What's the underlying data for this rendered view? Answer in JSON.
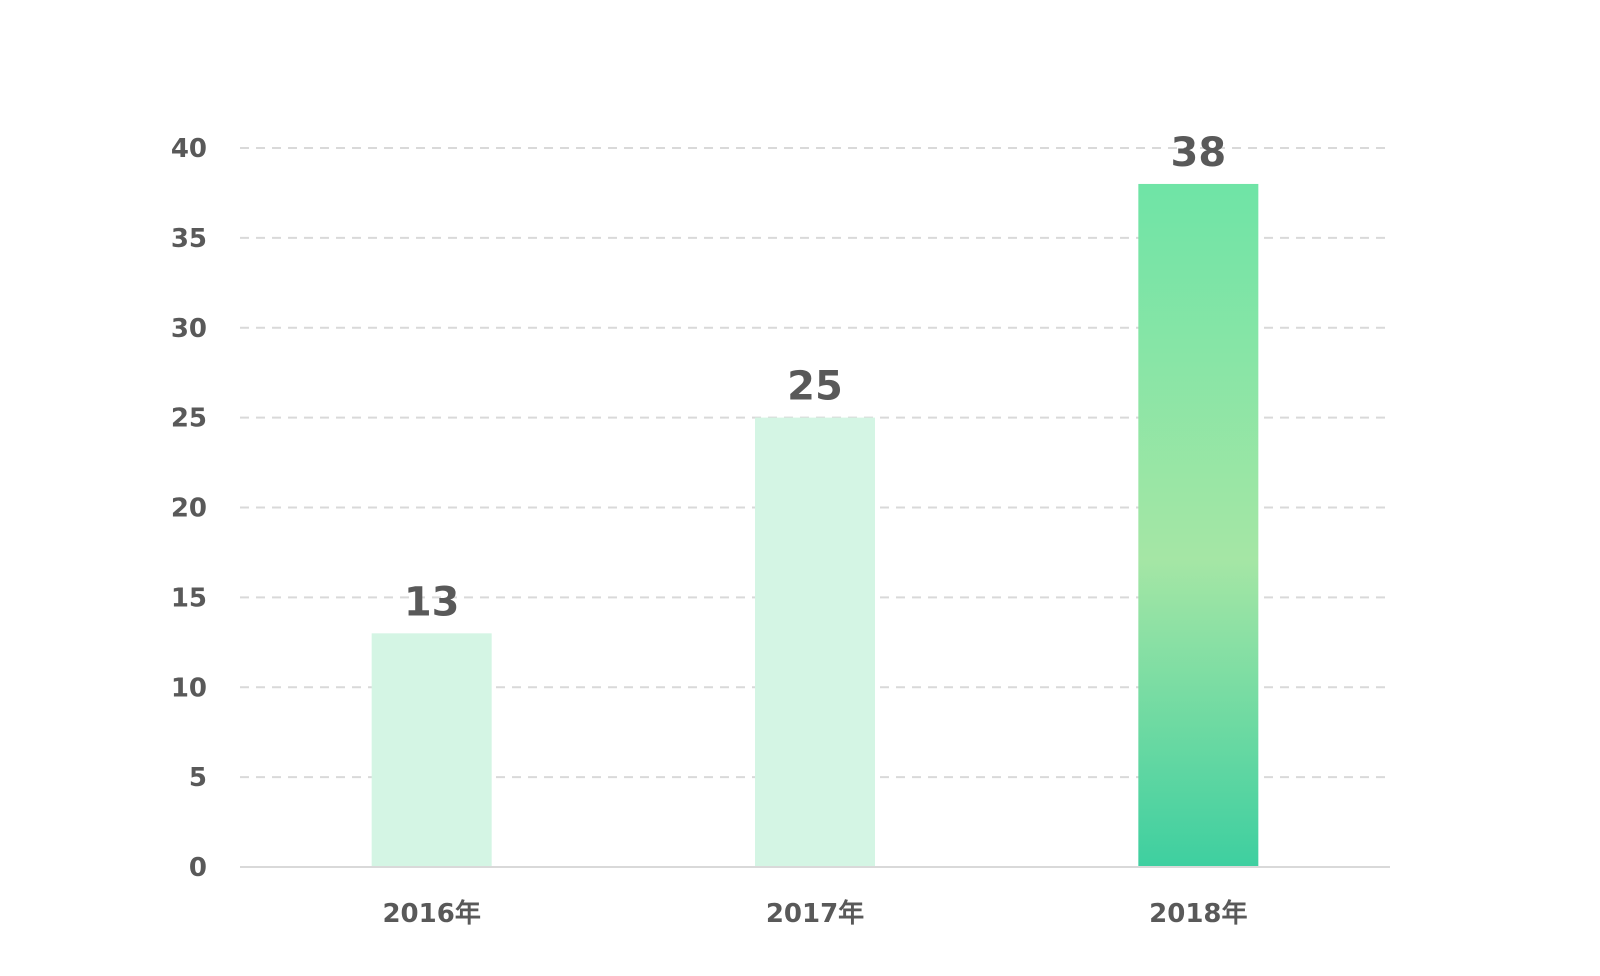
{
  "chart_data": {
    "type": "bar",
    "categories": [
      "2016年",
      "2017年",
      "2018年"
    ],
    "values": [
      13,
      25,
      38
    ],
    "data_labels": [
      "13",
      "25",
      "38"
    ],
    "title": "",
    "xlabel": "",
    "ylabel": "",
    "ylim": [
      0,
      40
    ],
    "yticks": [
      0,
      5,
      10,
      15,
      20,
      25,
      30,
      35,
      40
    ],
    "ytick_labels": [
      "0",
      "5",
      "10",
      "15",
      "20",
      "25",
      "30",
      "35",
      "40"
    ],
    "grid": "horizontal dashed",
    "legend": "none",
    "highlight_index": 2,
    "colors": {
      "bar_default": "#d4f5e4",
      "bar_highlight_top": "#6fe4a6",
      "bar_highlight_mid": "#a5e6a5",
      "bar_highlight_bottom": "#3ecfa0",
      "text": "#595959",
      "grid": "#d9d9d9"
    }
  }
}
